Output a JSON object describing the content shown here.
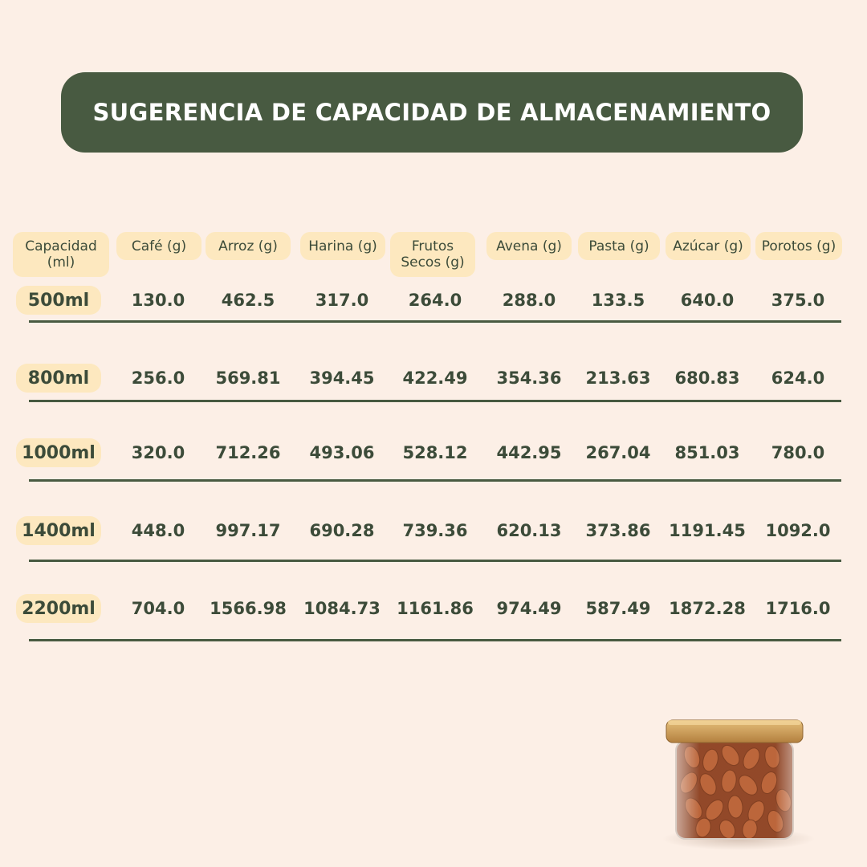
{
  "title": "SUGERENCIA DE CAPACIDAD DE ALMACENAMIENTO",
  "headers": [
    "Capacidad (ml)",
    "Café (g)",
    "Arroz (g)",
    "Harina (g)",
    "Frutos Secos (g)",
    "Avena (g)",
    "Pasta (g)",
    "Azúcar (g)",
    "Porotos (g)"
  ],
  "rows": [
    {
      "capacity": "500ml",
      "values": [
        "130.0",
        "462.5",
        "317.0",
        "264.0",
        "288.0",
        "133.5",
        "640.0",
        "375.0"
      ]
    },
    {
      "capacity": "800ml",
      "values": [
        "256.0",
        "569.81",
        "394.45",
        "422.49",
        "354.36",
        "213.63",
        "680.83",
        "624.0"
      ]
    },
    {
      "capacity": "1000ml",
      "values": [
        "320.0",
        "712.26",
        "493.06",
        "528.12",
        "442.95",
        "267.04",
        "851.03",
        "780.0"
      ]
    },
    {
      "capacity": "1400ml",
      "values": [
        "448.0",
        "997.17",
        "690.28",
        "739.36",
        "620.13",
        "373.86",
        "1191.45",
        "1092.0"
      ]
    },
    {
      "capacity": "2200ml",
      "values": [
        "704.0",
        "1566.98",
        "1084.73",
        "1161.86",
        "974.49",
        "587.49",
        "1872.28",
        "1716.0"
      ]
    }
  ],
  "image": {
    "icon": "almond-jar-icon"
  }
}
